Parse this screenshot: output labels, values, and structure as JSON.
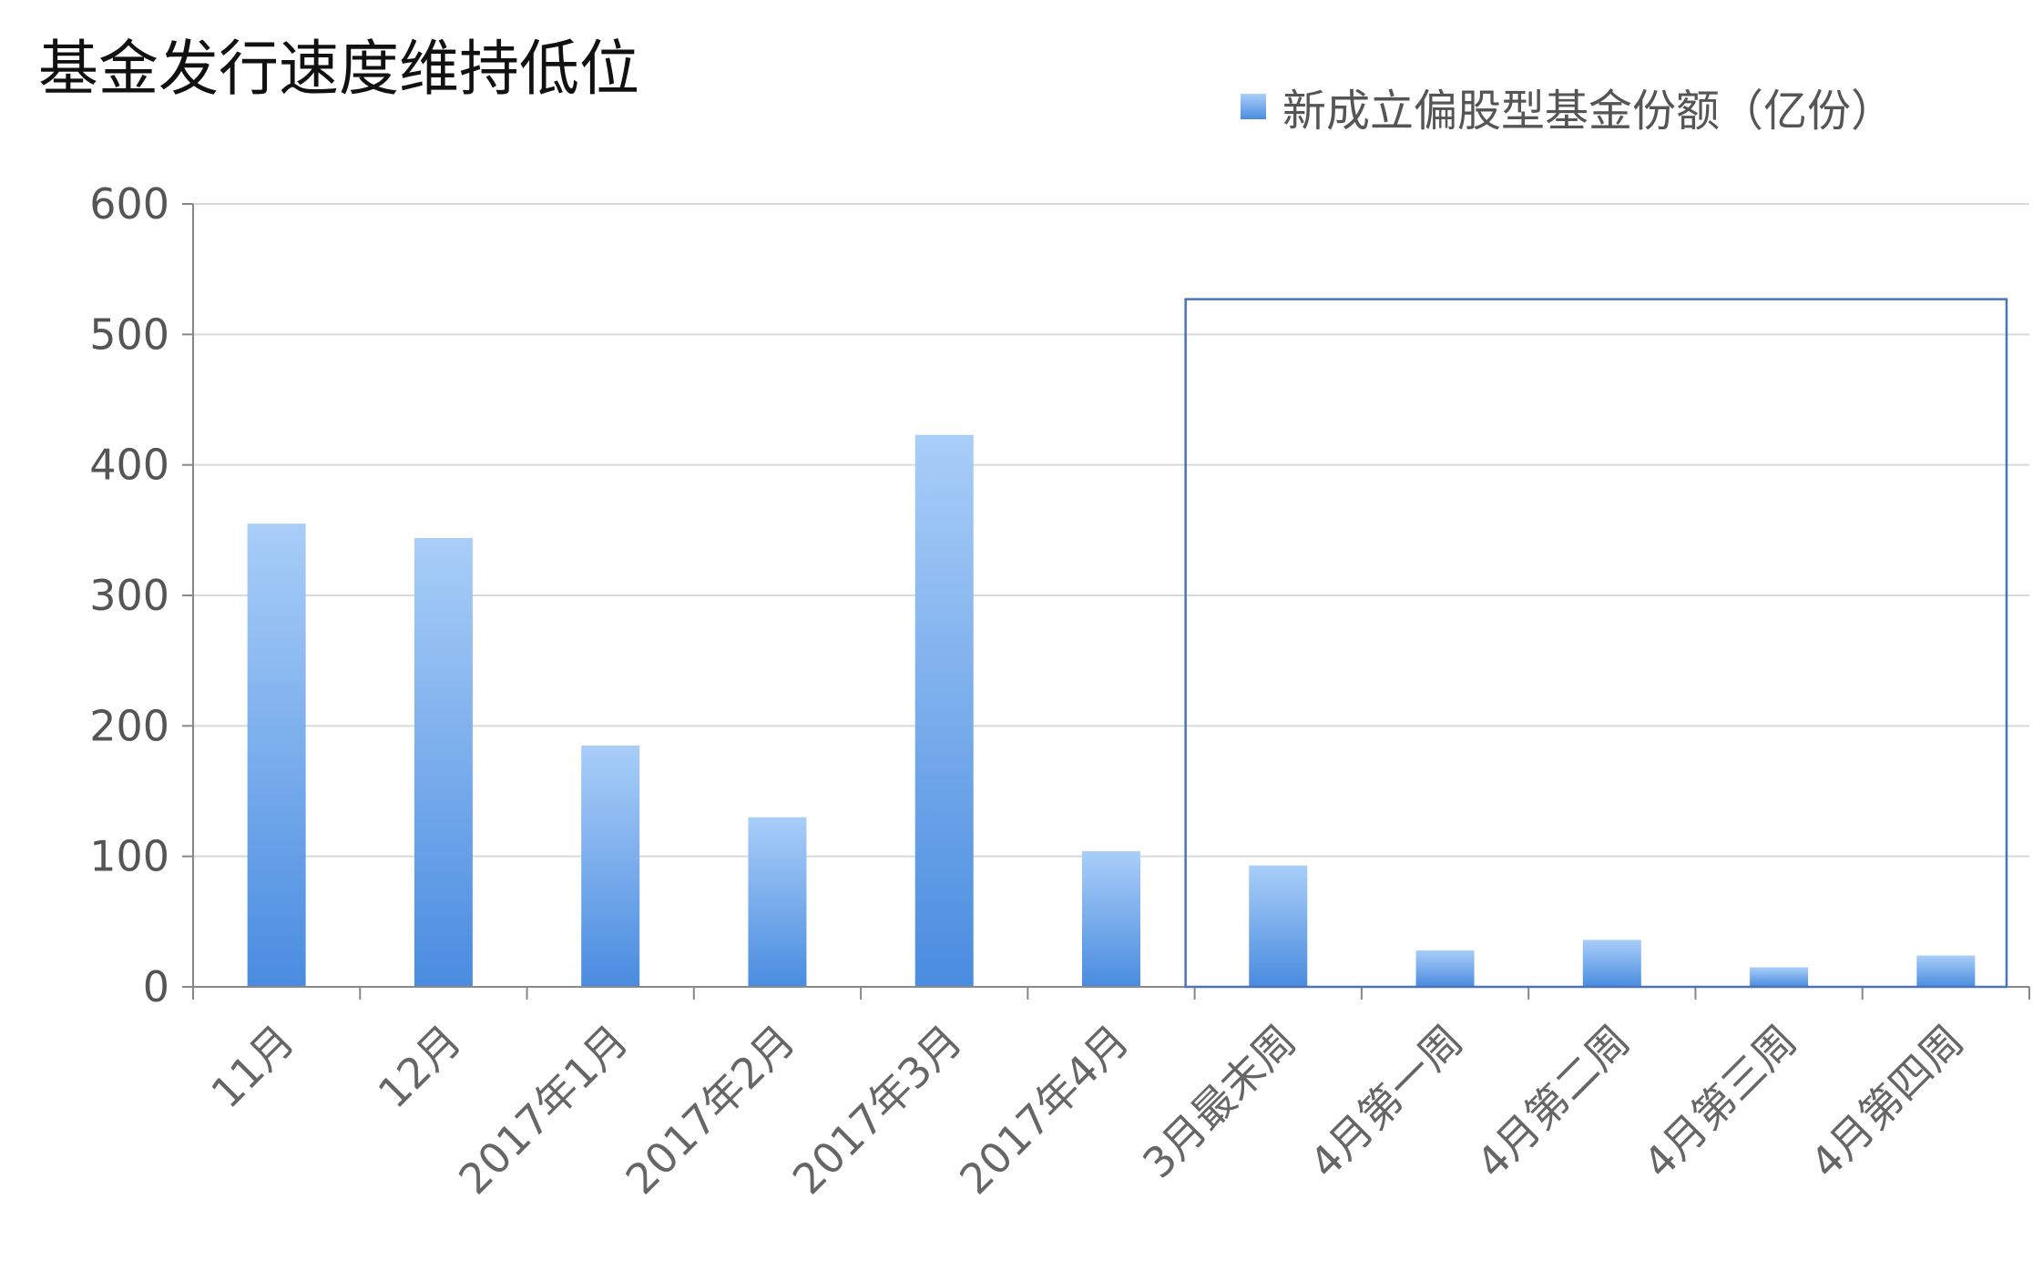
{
  "chart_data": {
    "type": "bar",
    "title": "基金发行速度维持低位",
    "xlabel": "",
    "ylabel": "",
    "categories": [
      "11月",
      "12月",
      "2017年1月",
      "2017年2月",
      "2017年3月",
      "2017年4月",
      "3月最末周",
      "4月第一周",
      "4月第二周",
      "4月第三周",
      "4月第四周"
    ],
    "series": [
      {
        "name": "新成立偏股型基金份额（亿份）",
        "values": [
          355,
          344,
          185,
          130,
          423,
          104,
          93,
          28,
          36,
          15,
          24
        ]
      }
    ],
    "ylim": [
      0,
      600
    ],
    "yticks": [
      "0",
      "100",
      "200",
      "300",
      "400",
      "500",
      "600"
    ],
    "grid": true,
    "legend_position": "top-right",
    "highlight_box": {
      "from_category": "3月最末周",
      "to_category": "4月第四周",
      "y_top": 527
    },
    "colors": {
      "bar_top": "#a9cef8",
      "bar_bottom": "#4a8ce0",
      "grid": "#d9d9d9",
      "axis": "#888888",
      "highlight": "#4a74b4"
    }
  }
}
